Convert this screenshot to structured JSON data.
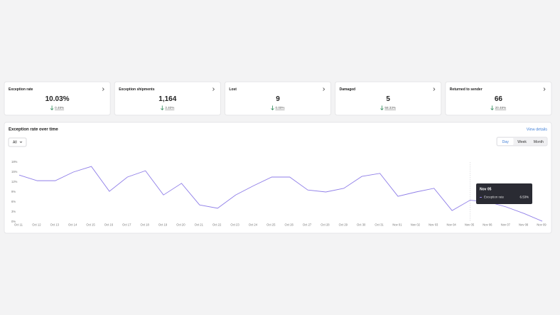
{
  "cards": [
    {
      "title": "Exception rate",
      "value": "10.03%",
      "change": "0.48%"
    },
    {
      "title": "Exception shipments",
      "value": "1,164",
      "change": "3.40%"
    },
    {
      "title": "Lost",
      "value": "9",
      "change": "0.00%"
    },
    {
      "title": "Damaged",
      "value": "5",
      "change": "58.33%"
    },
    {
      "title": "Returned to sender",
      "value": "66",
      "change": "20.48%"
    }
  ],
  "chart_data": {
    "type": "line",
    "title": "Exception rate over time",
    "link": "View details",
    "filter": "All",
    "periods": [
      "Day",
      "Week",
      "Month"
    ],
    "active_period": "Day",
    "categories": [
      "Oct 11",
      "Oct 12",
      "Oct 13",
      "Oct 14",
      "Oct 15",
      "Oct 16",
      "Oct 17",
      "Oct 18",
      "Oct 19",
      "Oct 20",
      "Oct 21",
      "Oct 22",
      "Oct 23",
      "Oct 24",
      "Oct 25",
      "Oct 26",
      "Oct 27",
      "Oct 28",
      "Oct 29",
      "Oct 30",
      "Oct 31",
      "Nov 01",
      "Nov 02",
      "Nov 03",
      "Nov 04",
      "Nov 05",
      "Nov 06",
      "Nov 07",
      "Nov 08",
      "Nov 09"
    ],
    "series": [
      {
        "name": "Exception rate",
        "color": "#8f7ee8",
        "values": [
          14.1,
          12.4,
          12.4,
          15.0,
          16.7,
          9.2,
          13.5,
          15.4,
          8.1,
          11.6,
          5.1,
          4.1,
          8.1,
          10.9,
          13.5,
          13.5,
          9.6,
          9.0,
          10.1,
          13.7,
          14.6,
          7.7,
          9.0,
          10.1,
          3.4,
          6.53,
          6.0,
          4.5,
          2.5,
          0.2
        ]
      }
    ],
    "ylim": [
      0,
      18
    ],
    "yticks": [
      {
        "value": 0,
        "label": "0%"
      },
      {
        "value": 3,
        "label": "3%"
      },
      {
        "value": 6,
        "label": "6%"
      },
      {
        "value": 9,
        "label": "9%"
      },
      {
        "value": 12,
        "label": "12%"
      },
      {
        "value": 15,
        "label": "15%"
      },
      {
        "value": 18,
        "label": "18%"
      }
    ],
    "tooltip": {
      "category": "Nov 05",
      "value_label": "6.53%"
    }
  }
}
